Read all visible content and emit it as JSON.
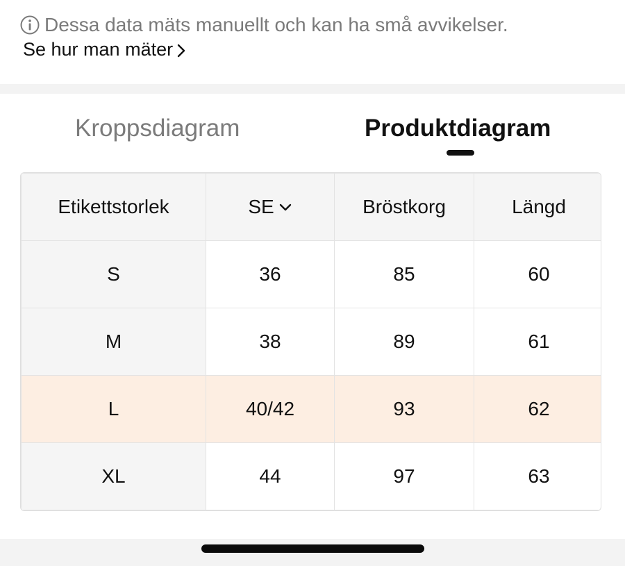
{
  "notice": {
    "icon": "info-icon",
    "text": "Dessa data mäts manuellt och kan ha små avvikelser.",
    "link_label": "Se hur man mäter"
  },
  "tabs": [
    {
      "label": "Kroppsdiagram",
      "active": false
    },
    {
      "label": "Produktdiagram",
      "active": true
    }
  ],
  "table": {
    "headers": [
      "Etikettstorlek",
      "SE",
      "Bröstkorg",
      "Längd"
    ],
    "rows": [
      [
        "S",
        "36",
        "85",
        "60"
      ],
      [
        "M",
        "38",
        "89",
        "61"
      ],
      [
        "L",
        "40/42",
        "93",
        "62"
      ],
      [
        "XL",
        "44",
        "97",
        "63"
      ]
    ],
    "highlight_row": "L",
    "colors": {
      "header_bg": "#f5f5f5",
      "highlight_bg": "#fdeee2",
      "border": "#e3e3e3"
    }
  }
}
